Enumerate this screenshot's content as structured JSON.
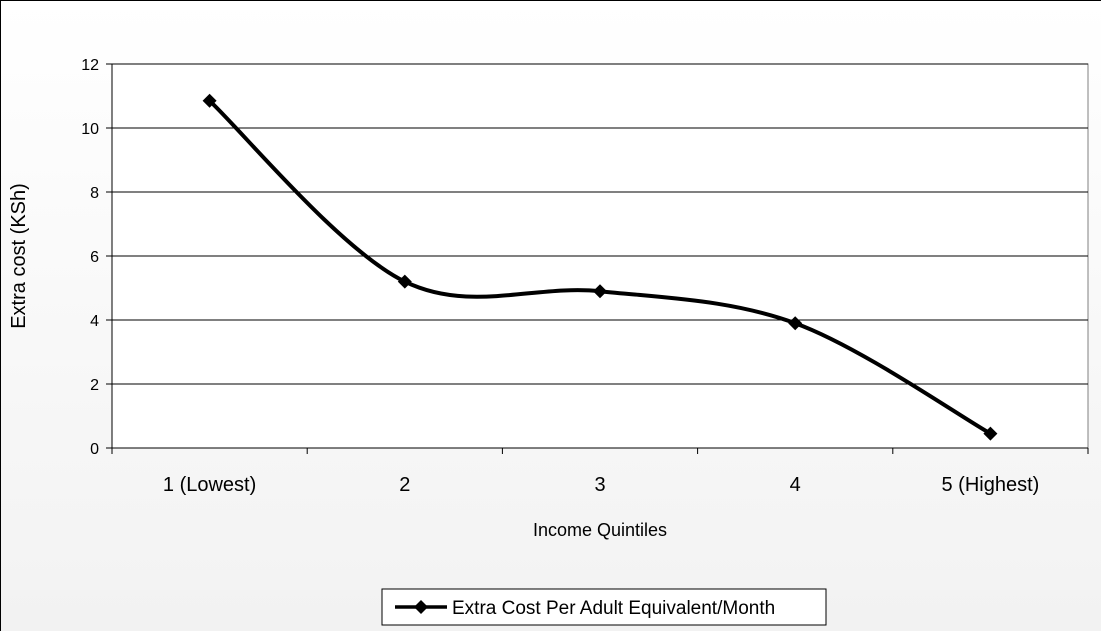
{
  "chart_data": {
    "type": "line",
    "title": "",
    "xlabel": "Income Quintiles",
    "ylabel": "Extra cost (KSh)",
    "categories": [
      "1 (Lowest)",
      "2",
      "3",
      "4",
      "5 (Highest)"
    ],
    "series": [
      {
        "name": "Extra Cost Per Adult Equivalent/Month",
        "values": [
          10.85,
          5.2,
          4.9,
          3.9,
          0.45
        ]
      }
    ],
    "ylim": [
      0,
      12
    ],
    "yticks": [
      "0",
      "2",
      "4",
      "6",
      "8",
      "10",
      "12"
    ],
    "smoothed": true,
    "grid": "horizontal",
    "legend_position": "bottom-center",
    "marker": "diamond",
    "line_color": "#000000",
    "gridline_color": "#000000",
    "plot_background": "#ffffff"
  }
}
